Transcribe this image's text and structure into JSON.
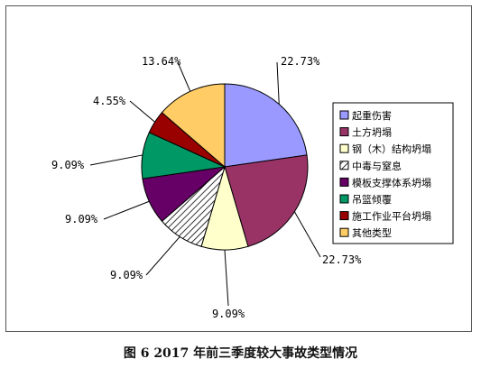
{
  "caption": "图 6   2017 年前三季度较大事故类型情况",
  "chart_data": {
    "type": "pie",
    "slices": [
      {
        "label": "起重伤害",
        "value": 22.73,
        "display": "22.73%",
        "color": "#9999ff",
        "pattern": "solid"
      },
      {
        "label": "土方坍塌",
        "value": 22.73,
        "display": "22.73%",
        "color": "#993366",
        "pattern": "solid"
      },
      {
        "label": "钢（木）结构坍塌",
        "value": 9.09,
        "display": "9.09%",
        "color": "#ffffcc",
        "pattern": "solid"
      },
      {
        "label": "中毒与窒息",
        "value": 9.09,
        "display": "9.09%",
        "color": "#ffffff",
        "pattern": "diagonal-hatch"
      },
      {
        "label": "模板支撑体系坍塌",
        "value": 9.09,
        "display": "9.09%",
        "color": "#660066",
        "pattern": "solid"
      },
      {
        "label": "吊篮倾覆",
        "value": 9.09,
        "display": "9.09%",
        "color": "#009966",
        "pattern": "solid"
      },
      {
        "label": "施工作业平台坍塌",
        "value": 4.55,
        "display": "4.55%",
        "color": "#990000",
        "pattern": "solid"
      },
      {
        "label": "其他类型",
        "value": 13.64,
        "display": "13.64%",
        "color": "#ffcc66",
        "pattern": "solid"
      }
    ],
    "start_angle": "12 o'clock",
    "direction": "clockwise",
    "legend_position": "right"
  }
}
